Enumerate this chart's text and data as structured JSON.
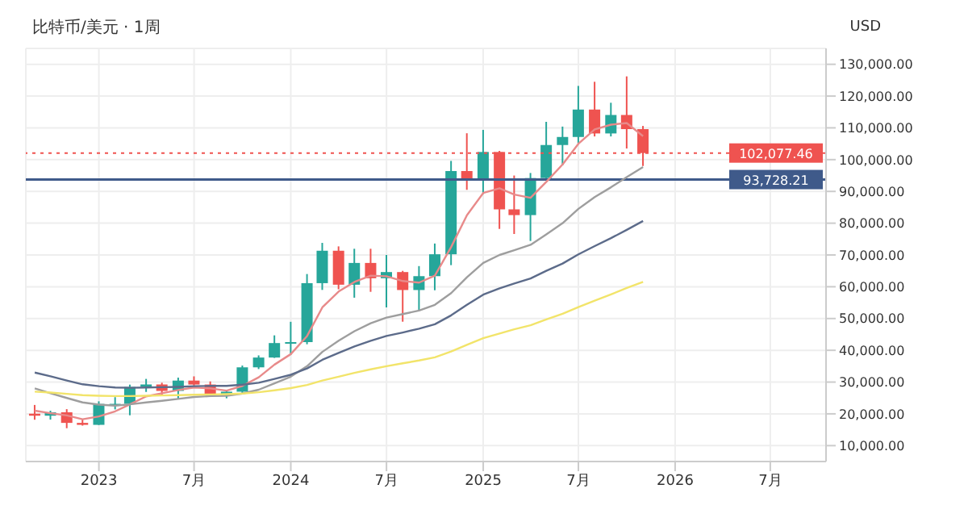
{
  "chart_data": {
    "type": "candlestick",
    "title": "比特币/美元 · 1周",
    "ylabel": "USD",
    "x": [
      "2022-09",
      "2022-10",
      "2022-11",
      "2022-12",
      "2023-01",
      "2023-02",
      "2023-03",
      "2023-04",
      "2023-05",
      "2023-06",
      "2023-07",
      "2023-08",
      "2023-09",
      "2023-10",
      "2023-11",
      "2023-12",
      "2024-01",
      "2024-02",
      "2024-03",
      "2024-04",
      "2024-05",
      "2024-06",
      "2024-07",
      "2024-08",
      "2024-09",
      "2024-10",
      "2024-11",
      "2024-12",
      "2025-01",
      "2025-02",
      "2025-03",
      "2025-04",
      "2025-05",
      "2025-06",
      "2025-07",
      "2025-08",
      "2025-09",
      "2025-10",
      "2025-11"
    ],
    "ohlc": [
      [
        20050,
        22800,
        18150,
        19420
      ],
      [
        19420,
        20990,
        18190,
        20490
      ],
      [
        20490,
        21480,
        15480,
        17160
      ],
      [
        17160,
        18380,
        16300,
        16540
      ],
      [
        16540,
        23950,
        16500,
        23130
      ],
      [
        23130,
        25250,
        21400,
        23150
      ],
      [
        23150,
        29200,
        19550,
        28480
      ],
      [
        28480,
        31000,
        26900,
        29250
      ],
      [
        29250,
        29800,
        25800,
        27220
      ],
      [
        27220,
        31400,
        24800,
        30470
      ],
      [
        30470,
        31800,
        28900,
        29230
      ],
      [
        29230,
        30200,
        25300,
        25930
      ],
      [
        25930,
        27500,
        24900,
        26970
      ],
      [
        26970,
        35200,
        26550,
        34640
      ],
      [
        34640,
        38400,
        34100,
        37720
      ],
      [
        37720,
        44700,
        37600,
        42280
      ],
      [
        42280,
        48970,
        38550,
        42580
      ],
      [
        42580,
        64000,
        41900,
        61130
      ],
      [
        61130,
        73800,
        59000,
        71330
      ],
      [
        71330,
        72700,
        59200,
        60640
      ],
      [
        60640,
        71950,
        56550,
        67490
      ],
      [
        67490,
        71950,
        58400,
        62680
      ],
      [
        62680,
        70000,
        53500,
        64620
      ],
      [
        64620,
        65000,
        49000,
        58970
      ],
      [
        58970,
        66500,
        52600,
        63330
      ],
      [
        63330,
        73600,
        58900,
        70220
      ],
      [
        70220,
        99600,
        66800,
        96410
      ],
      [
        96410,
        108300,
        90500,
        93430
      ],
      [
        93430,
        109350,
        89200,
        102410
      ],
      [
        102410,
        102750,
        78200,
        84350
      ],
      [
        84350,
        95000,
        76600,
        82550
      ],
      [
        82550,
        95800,
        74400,
        94200
      ],
      [
        94200,
        111900,
        93400,
        104600
      ],
      [
        104600,
        110400,
        98200,
        107130
      ],
      [
        107130,
        123200,
        105100,
        115760
      ],
      [
        115760,
        124500,
        107300,
        108240
      ],
      [
        108240,
        117900,
        107300,
        114050
      ],
      [
        114050,
        126200,
        103500,
        109600
      ],
      [
        109600,
        110600,
        98000,
        102077.46
      ]
    ],
    "series": [
      {
        "type": "line",
        "color": "#e88a8a",
        "values": [
          21000,
          20200,
          19500,
          18300,
          19200,
          20800,
          23000,
          25500,
          26500,
          27500,
          28300,
          28000,
          27300,
          28800,
          31500,
          35500,
          38800,
          44500,
          53500,
          58500,
          61500,
          63500,
          63300,
          61800,
          61300,
          63500,
          72500,
          82500,
          89500,
          91000,
          89000,
          88000,
          93000,
          98500,
          105000,
          109500,
          111000,
          111500,
          107400
        ]
      },
      {
        "type": "line",
        "color": "#9e9e9e",
        "values": [
          28000,
          26500,
          25000,
          23600,
          22900,
          22600,
          23000,
          23600,
          24100,
          24700,
          25300,
          25600,
          25700,
          26400,
          27600,
          29600,
          31700,
          35000,
          39500,
          43000,
          46000,
          48500,
          50300,
          51400,
          52500,
          54300,
          58000,
          63000,
          67500,
          70000,
          71500,
          73200,
          76500,
          80000,
          84500,
          88200,
          91300,
          94500,
          97700
        ]
      },
      {
        "type": "line",
        "color": "#5c6b8a",
        "values": [
          33000,
          31800,
          30500,
          29300,
          28700,
          28300,
          28200,
          28300,
          28400,
          28500,
          28700,
          28800,
          28800,
          29200,
          29800,
          31000,
          32300,
          34300,
          37000,
          39200,
          41200,
          43000,
          44500,
          45600,
          46800,
          48200,
          51000,
          54300,
          57500,
          59500,
          61000,
          62600,
          65000,
          67300,
          70200,
          72800,
          75300,
          77900,
          80700
        ]
      },
      {
        "type": "line",
        "color": "#f2e46a",
        "values": [
          27000,
          26700,
          26300,
          25900,
          25700,
          25600,
          25600,
          25700,
          25800,
          25900,
          26000,
          26100,
          26200,
          26400,
          26800,
          27400,
          28100,
          29100,
          30500,
          31700,
          32900,
          34000,
          35000,
          35900,
          36800,
          37800,
          39600,
          41700,
          43800,
          45300,
          46600,
          47900,
          49700,
          51500,
          53600,
          55600,
          57600,
          59600,
          61500
        ]
      }
    ],
    "xlim": [
      "2022-08-15",
      "2026-10-15"
    ],
    "xticks": [
      {
        "value": "2023-01",
        "label": "2023"
      },
      {
        "value": "2023-07",
        "label": "7月"
      },
      {
        "value": "2024-01",
        "label": "2024"
      },
      {
        "value": "2024-07",
        "label": "7月"
      },
      {
        "value": "2025-01",
        "label": "2025"
      },
      {
        "value": "2025-07",
        "label": "7月"
      },
      {
        "value": "2026-01",
        "label": "2026"
      },
      {
        "value": "2026-07",
        "label": "7月"
      }
    ],
    "ylim": [
      5000,
      135000
    ],
    "yticks": [
      {
        "value": 10000,
        "label": "10,000.00"
      },
      {
        "value": 20000,
        "label": "20,000.00"
      },
      {
        "value": 30000,
        "label": "30,000.00"
      },
      {
        "value": 40000,
        "label": "40,000.00"
      },
      {
        "value": 50000,
        "label": "50,000.00"
      },
      {
        "value": 60000,
        "label": "60,000.00"
      },
      {
        "value": 70000,
        "label": "70,000.00"
      },
      {
        "value": 80000,
        "label": "80,000.00"
      },
      {
        "value": 90000,
        "label": "90,000.00"
      },
      {
        "value": 100000,
        "label": "100,000.00"
      },
      {
        "value": 110000,
        "label": "110,000.00"
      },
      {
        "value": 120000,
        "label": "120,000.00"
      },
      {
        "value": 130000,
        "label": "130,000.00"
      }
    ],
    "ref_lines": [
      {
        "axis": "y",
        "value": 102077.46,
        "label": "102,077.46",
        "color": "#ef5350",
        "line_style": "dotted"
      },
      {
        "axis": "y",
        "value": 93728.21,
        "label": "93,728.21",
        "color": "#3f5a8a",
        "line_style": "solid"
      }
    ],
    "grid": true
  }
}
